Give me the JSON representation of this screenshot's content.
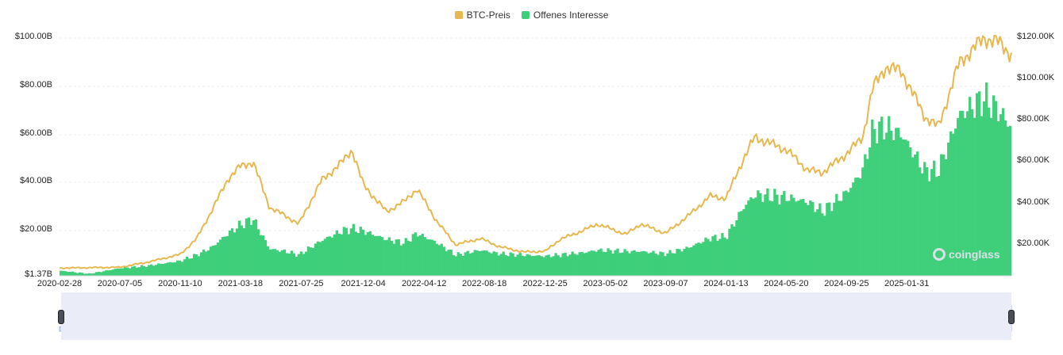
{
  "legend": {
    "btc_label": "BTC-Preis",
    "oi_label": "Offenes Interesse",
    "btc_color": "#e6b84f",
    "oi_color": "#3fcf7a"
  },
  "watermark": {
    "text": "coinglass"
  },
  "chart_data": {
    "type": "area",
    "title": "",
    "left_axis": {
      "series": "Offenes Interesse",
      "ticks": [
        "$1.37B",
        "$20.00B",
        "$40.00B",
        "$60.00B",
        "$80.00B",
        "$100.00B"
      ],
      "range": [
        1.37,
        100
      ]
    },
    "right_axis": {
      "series": "BTC-Preis",
      "ticks": [
        "$20.00K",
        "$40.00K",
        "$60.00K",
        "$80.00K",
        "$100.00K",
        "$120.00K"
      ],
      "range": [
        0,
        120000
      ]
    },
    "x_ticks": [
      "2020-02-28",
      "2020-07-05",
      "2020-11-10",
      "2021-03-18",
      "2021-07-25",
      "2021-12-04",
      "2022-04-12",
      "2022-08-18",
      "2022-12-25",
      "2023-05-02",
      "2023-09-07",
      "2024-01-13",
      "2024-05-20",
      "2024-09-25",
      "2025-01-31"
    ],
    "x": [
      "2020-02-28",
      "2020-05-01",
      "2020-07-05",
      "2020-09-01",
      "2020-11-10",
      "2020-12-15",
      "2021-01-15",
      "2021-02-20",
      "2021-03-18",
      "2021-04-14",
      "2021-05-19",
      "2021-06-22",
      "2021-07-20",
      "2021-09-06",
      "2021-10-20",
      "2021-11-10",
      "2021-12-04",
      "2022-01-22",
      "2022-03-01",
      "2022-03-28",
      "2022-05-10",
      "2022-06-18",
      "2022-08-10",
      "2022-09-20",
      "2022-11-09",
      "2022-12-25",
      "2023-01-25",
      "2023-03-17",
      "2023-04-15",
      "2023-06-15",
      "2023-07-15",
      "2023-09-07",
      "2023-10-25",
      "2023-12-10",
      "2024-01-13",
      "2024-02-20",
      "2024-03-14",
      "2024-05-20",
      "2024-07-05",
      "2024-08-05",
      "2024-09-25",
      "2024-10-29",
      "2024-11-20",
      "2024-12-17",
      "2025-01-20",
      "2025-03-10",
      "2025-04-08",
      "2025-05-22",
      "2025-07-14",
      "2025-08-14",
      "2025-09-10"
    ],
    "series": [
      {
        "name": "BTC-Preis",
        "axis": "right",
        "values": [
          8700,
          8900,
          9100,
          11500,
          15300,
          23000,
          36000,
          52000,
          58000,
          60000,
          38000,
          34000,
          30000,
          51000,
          60000,
          66000,
          49000,
          36000,
          41000,
          47000,
          31000,
          20000,
          23000,
          19000,
          16500,
          16800,
          22500,
          27000,
          30000,
          25000,
          30000,
          25500,
          34000,
          43500,
          42500,
          62000,
          72000,
          66000,
          56000,
          55000,
          64000,
          72000,
          96000,
          106000,
          104000,
          82000,
          77000,
          108000,
          120000,
          118000,
          112000
        ]
      },
      {
        "name": "Offenes Interesse",
        "axis": "left",
        "values": [
          3.5,
          2.2,
          4.5,
          5.5,
          7.5,
          10,
          13,
          19,
          22.5,
          25,
          12.5,
          11.5,
          10,
          16,
          20,
          21,
          20,
          16.5,
          15,
          19,
          15,
          10,
          12,
          10.5,
          10,
          9.5,
          10,
          11,
          12,
          11.5,
          11.5,
          10.5,
          13,
          17,
          17.5,
          30,
          35,
          34,
          32,
          28,
          36,
          45,
          62,
          63,
          60,
          45,
          45,
          68,
          75,
          70,
          63
        ]
      }
    ],
    "navigator": true
  }
}
